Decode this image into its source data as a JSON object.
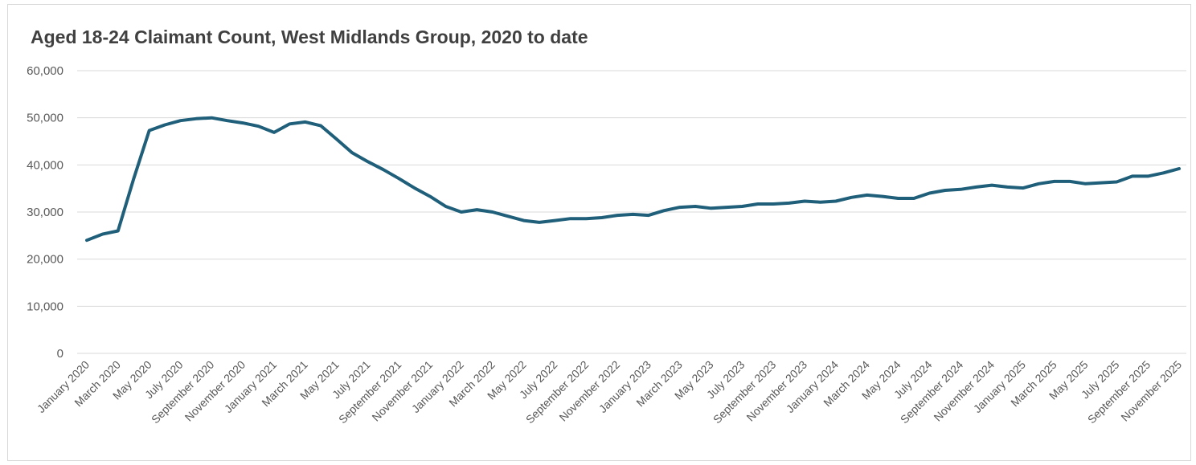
{
  "chart_data": {
    "type": "line",
    "title": "Aged 18-24 Claimant Count, West Midlands Group, 2020 to date",
    "xlabel": "",
    "ylabel": "",
    "ylim": [
      0,
      60000
    ],
    "yticks": [
      "0",
      "10,000",
      "20,000",
      "30,000",
      "40,000",
      "50,000",
      "60,000"
    ],
    "x_tick_labels": [
      "January 2020",
      "March 2020",
      "May 2020",
      "July 2020",
      "September 2020",
      "November 2020",
      "January 2021",
      "March 2021",
      "May 2021",
      "July 2021",
      "September 2021",
      "November 2021",
      "January 2022",
      "March 2022",
      "May 2022",
      "July 2022",
      "September 2022",
      "November 2022",
      "January 2023",
      "March 2023",
      "May 2023",
      "July 2023",
      "September 2023",
      "November 2023",
      "January 2024",
      "March 2024",
      "May 2024",
      "July 2024",
      "September 2024",
      "November 2024",
      "January 2025",
      "March 2025",
      "May 2025",
      "July 2025",
      "September 2025",
      "November 2025"
    ],
    "grid": true,
    "legend": "none",
    "line_color": "#1f5f7a",
    "series": [
      {
        "x": [
          "January 2020",
          "February 2020",
          "March 2020",
          "April 2020",
          "May 2020",
          "June 2020",
          "July 2020",
          "August 2020",
          "September 2020",
          "October 2020",
          "November 2020",
          "December 2020",
          "January 2021",
          "February 2021",
          "March 2021",
          "April 2021",
          "May 2021",
          "June 2021",
          "July 2021",
          "August 2021",
          "September 2021",
          "October 2021",
          "November 2021",
          "December 2021",
          "January 2022",
          "February 2022",
          "March 2022",
          "April 2022",
          "May 2022",
          "June 2022",
          "July 2022",
          "August 2022",
          "September 2022",
          "October 2022",
          "November 2022",
          "December 2022",
          "January 2023",
          "February 2023",
          "March 2023",
          "April 2023",
          "May 2023",
          "June 2023",
          "July 2023",
          "August 2023",
          "September 2023",
          "October 2023",
          "November 2023",
          "December 2023",
          "January 2024",
          "February 2024",
          "March 2024",
          "April 2024",
          "May 2024",
          "June 2024",
          "July 2024",
          "August 2024",
          "September 2024",
          "October 2024",
          "November 2024",
          "December 2024",
          "January 2025",
          "February 2025",
          "March 2025",
          "April 2025",
          "May 2025",
          "June 2025",
          "July 2025",
          "August 2025",
          "September 2025",
          "October 2025",
          "November 2025"
        ],
        "values": [
          24000,
          25300,
          26000,
          37000,
          47300,
          48500,
          49400,
          49800,
          50000,
          49400,
          48900,
          48200,
          46900,
          48700,
          49100,
          48300,
          45500,
          42600,
          40700,
          39000,
          37100,
          35100,
          33300,
          31200,
          30000,
          30500,
          30000,
          29100,
          28200,
          27800,
          28200,
          28600,
          28600,
          28800,
          29300,
          29500,
          29300,
          30300,
          31000,
          31200,
          30800,
          31000,
          31200,
          31700,
          31700,
          31900,
          32300,
          32100,
          32300,
          33100,
          33600,
          33300,
          32900,
          32900,
          34000,
          34600,
          34800,
          35300,
          35700,
          35300,
          35100,
          36000,
          36500,
          36500,
          36000,
          36200,
          36400,
          37600,
          37600,
          38300,
          39200
        ]
      }
    ]
  }
}
